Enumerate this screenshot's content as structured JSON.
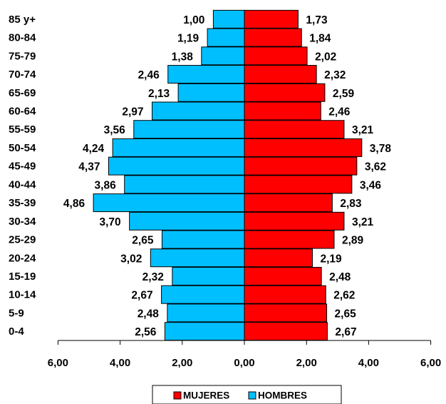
{
  "chart_data": {
    "type": "bar",
    "orientation": "horizontal",
    "categories": [
      "85 y+",
      "80-84",
      "75-79",
      "70-74",
      "65-69",
      "60-64",
      "55-59",
      "50-54",
      "45-49",
      "40-44",
      "35-39",
      "30-34",
      "25-29",
      "20-24",
      "15-19",
      "10-14",
      "5-9",
      "0-4"
    ],
    "series": [
      {
        "name": "HOMBRES",
        "side": "left",
        "color": "#00BFFF",
        "values": [
          1.0,
          1.19,
          1.38,
          2.46,
          2.13,
          2.97,
          3.56,
          4.24,
          4.37,
          3.86,
          4.86,
          3.7,
          2.65,
          3.02,
          2.32,
          2.67,
          2.48,
          2.56
        ],
        "labels": [
          "1,00",
          "1,19",
          "1,38",
          "2,46",
          "2,13",
          "2,97",
          "3,56",
          "4,24",
          "4,37",
          "3,86",
          "4,86",
          "3,70",
          "2,65",
          "3,02",
          "2,32",
          "2,67",
          "2,48",
          "2,56"
        ]
      },
      {
        "name": "MUJERES",
        "side": "right",
        "color": "#FF0000",
        "values": [
          1.73,
          1.84,
          2.02,
          2.32,
          2.59,
          2.46,
          3.21,
          3.78,
          3.62,
          3.46,
          2.83,
          3.21,
          2.89,
          2.19,
          2.48,
          2.62,
          2.65,
          2.67
        ],
        "labels": [
          "1,73",
          "1,84",
          "2,02",
          "2,32",
          "2,59",
          "2,46",
          "3,21",
          "3,78",
          "3,62",
          "3,46",
          "2,83",
          "3,21",
          "2,89",
          "2,19",
          "2,48",
          "2,62",
          "2,65",
          "2,67"
        ]
      }
    ],
    "xlim": [
      -6,
      6
    ],
    "x_ticks": [
      -6,
      -4,
      -2,
      0,
      2,
      4,
      6
    ],
    "x_tick_labels": [
      "6,00",
      "4,00",
      "2,00",
      "0,00",
      "2,00",
      "4,00",
      "6,00"
    ],
    "title": "",
    "xlabel": "",
    "ylabel": "",
    "grid": false,
    "legend": {
      "position": "bottom",
      "entries": [
        "MUJERES",
        "HOMBRES"
      ]
    }
  }
}
